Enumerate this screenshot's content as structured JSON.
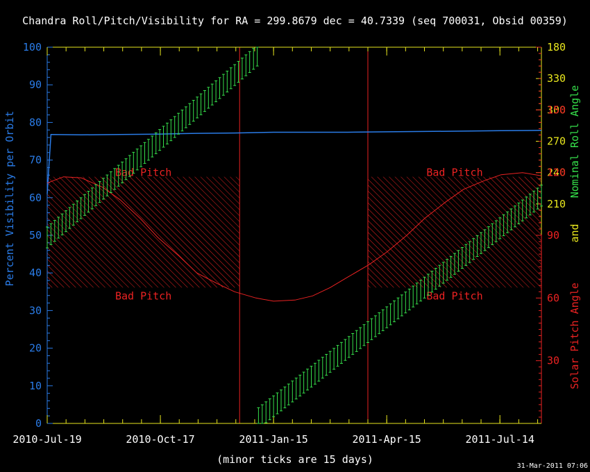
{
  "chart_data": {
    "type": "line",
    "title": "Chandra Roll/Pitch/Visibility for RA = 299.8679 dec = 40.7339 (seq 700031, Obsid 00359)",
    "x_axis": {
      "type": "date",
      "ticks": [
        "2010-Jul-19",
        "2010-Oct-17",
        "2011-Jan-15",
        "2011-Apr-15",
        "2011-Jul-14"
      ],
      "tick_dates": [
        "2010-07-19",
        "2010-10-17",
        "2011-01-15",
        "2011-04-15",
        "2011-07-14"
      ],
      "range": [
        "2010-07-19",
        "2011-08-16"
      ],
      "note": "(minor ticks are 15 days)"
    },
    "y_left": {
      "label": "Percent Visibility per Orbit",
      "range": [
        0,
        100
      ],
      "ticks": [
        0,
        10,
        20,
        30,
        40,
        50,
        60,
        70,
        80,
        90,
        100
      ],
      "color": "#2a7ce8"
    },
    "y_right_roll": {
      "label": "Nominal Roll Angle",
      "range": [
        0,
        360
      ],
      "ticks": [
        210,
        240,
        270,
        300,
        330
      ],
      "color": "#36e04b",
      "tick_color": "#e8e61e"
    },
    "y_right_pitch": {
      "label": "Solar Pitch Angle",
      "range": [
        0,
        180
      ],
      "ticks": [
        30,
        60,
        90,
        120,
        150,
        180
      ],
      "color": "#ea2222"
    },
    "connector_label": "and",
    "bad_pitch": {
      "label": "Bad Pitch",
      "range": [
        65,
        118
      ],
      "color": "#ea2222"
    },
    "window_lines": {
      "dates": [
        "2010-12-19",
        "2011-03-31"
      ],
      "pitch_top": 180,
      "color": "#ea2222"
    },
    "series": [
      {
        "name": "Percent Visibility per Orbit",
        "axis": "left",
        "color": "#2a7ce8",
        "points": [
          [
            "2010-07-19",
            61
          ],
          [
            "2010-07-22",
            76.8
          ],
          [
            "2010-08-15",
            76.7
          ],
          [
            "2010-09-15",
            76.8
          ],
          [
            "2010-10-15",
            76.9
          ],
          [
            "2010-11-15",
            77.1
          ],
          [
            "2010-12-15",
            77.2
          ],
          [
            "2011-01-15",
            77.4
          ],
          [
            "2011-02-15",
            77.4
          ],
          [
            "2011-03-15",
            77.4
          ],
          [
            "2011-04-15",
            77.5
          ],
          [
            "2011-05-15",
            77.6
          ],
          [
            "2011-06-15",
            77.7
          ],
          [
            "2011-07-15",
            77.8
          ],
          [
            "2011-08-16",
            77.9
          ]
        ]
      },
      {
        "name": "Solar Pitch Angle",
        "axis": "right_pitch",
        "color": "#ea2222",
        "points": [
          [
            "2010-07-19",
            115
          ],
          [
            "2010-08-01",
            118
          ],
          [
            "2010-08-15",
            117.5
          ],
          [
            "2010-09-01",
            113
          ],
          [
            "2010-09-15",
            107
          ],
          [
            "2010-10-01",
            98
          ],
          [
            "2010-10-15",
            89
          ],
          [
            "2010-11-01",
            80
          ],
          [
            "2010-11-15",
            72
          ],
          [
            "2010-12-01",
            67
          ],
          [
            "2010-12-15",
            63
          ],
          [
            "2011-01-01",
            60
          ],
          [
            "2011-01-15",
            58.5
          ],
          [
            "2011-02-01",
            59
          ],
          [
            "2011-02-15",
            61
          ],
          [
            "2011-03-01",
            65
          ],
          [
            "2011-03-15",
            70
          ],
          [
            "2011-04-01",
            76
          ],
          [
            "2011-04-15",
            82
          ],
          [
            "2011-05-01",
            90
          ],
          [
            "2011-05-15",
            98
          ],
          [
            "2011-06-01",
            106
          ],
          [
            "2011-06-15",
            112
          ],
          [
            "2011-07-01",
            116
          ],
          [
            "2011-07-15",
            119
          ],
          [
            "2011-08-01",
            120
          ],
          [
            "2011-08-16",
            118.5
          ]
        ]
      },
      {
        "name": "Nominal Roll Angle",
        "axis": "right_roll",
        "color": "#36e04b",
        "bands": [
          {
            "start": "2010-07-19",
            "end": "2011-01-02",
            "center_start": 178,
            "center_end": 352,
            "half_width": 10
          },
          {
            "start": "2011-01-03",
            "end": "2011-08-16",
            "center_start": 5,
            "center_end": 218,
            "half_width": 10
          }
        ]
      }
    ]
  },
  "footer": {
    "timestamp": "31-Mar-2011 07:06"
  }
}
